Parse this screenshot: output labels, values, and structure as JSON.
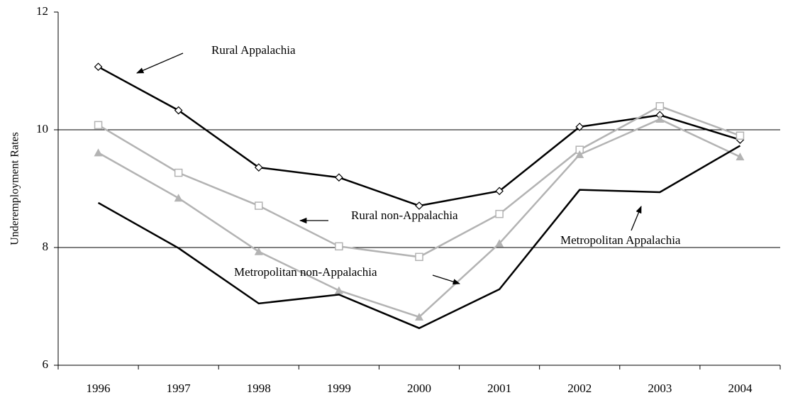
{
  "chart_data": {
    "type": "line",
    "y_label": "Underemployment Rates",
    "categories": [
      "1996",
      "1997",
      "1998",
      "1999",
      "2000",
      "2001",
      "2002",
      "2003",
      "2004"
    ],
    "series": [
      {
        "name": "Rural Appalachia",
        "color": "#000000",
        "marker": "diamond",
        "values": [
          11.07,
          10.33,
          9.36,
          9.19,
          8.71,
          8.96,
          10.05,
          10.25,
          9.83
        ]
      },
      {
        "name": "Rural non-Appalachia",
        "color": "#b3b3b3",
        "marker": "square",
        "values": [
          10.08,
          9.27,
          8.71,
          8.02,
          7.84,
          8.57,
          9.66,
          10.4,
          9.9
        ]
      },
      {
        "name": "Metropolitan non-Appalachia",
        "color": "#b3b3b3",
        "marker": "triangle",
        "values": [
          9.61,
          8.84,
          7.93,
          7.27,
          6.82,
          8.07,
          9.58,
          10.18,
          9.54
        ]
      },
      {
        "name": "Metropolitan Appalachia",
        "color": "#000000",
        "marker": "none",
        "values": [
          8.76,
          7.99,
          7.05,
          7.2,
          6.63,
          7.29,
          8.98,
          8.94,
          9.73
        ]
      }
    ],
    "ylim": [
      6,
      12
    ],
    "yticks": [
      6,
      8,
      10,
      12
    ],
    "grid": true
  }
}
